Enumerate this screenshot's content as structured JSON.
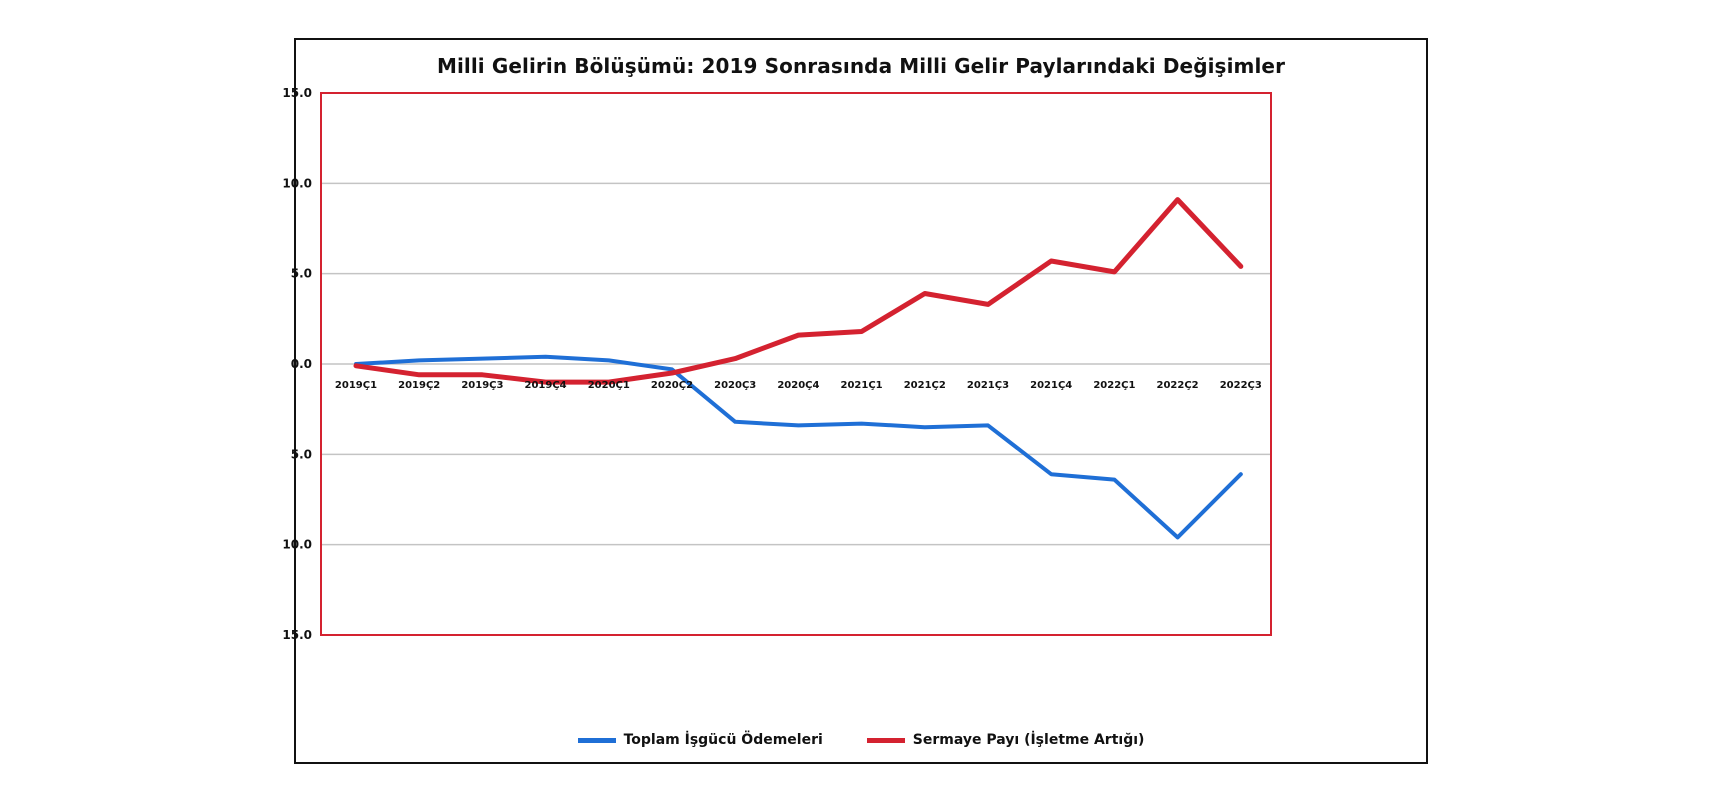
{
  "chart_data": {
    "type": "line",
    "title": "Milli Gelirin Bölüşümü: 2019 Sonrasında Milli Gelir Paylarındaki Değişimler",
    "xlabel": "",
    "ylabel": "",
    "categories": [
      "2019Ç1",
      "2019Ç2",
      "2019Ç3",
      "2019Ç4",
      "2020Ç1",
      "2020Ç2",
      "2020Ç3",
      "2020Ç4",
      "2021Ç1",
      "2021Ç2",
      "2021Ç3",
      "2021Ç4",
      "2022Ç1",
      "2022Ç2",
      "2022Ç3"
    ],
    "y_tick_labels": [
      "15.0",
      "10.0",
      "5.0",
      "0.0",
      "5.0",
      "10.0",
      "15.0"
    ],
    "y_tick_values": [
      15,
      10,
      5,
      0,
      -5,
      -10,
      -15
    ],
    "ylim": [
      -15,
      15
    ],
    "grid": true,
    "legend_position": "bottom",
    "series": [
      {
        "name": "Toplam İşgücü Ödemeleri",
        "color": "#1f6fd6",
        "values": [
          0.0,
          0.2,
          0.3,
          0.4,
          0.2,
          -0.3,
          -3.2,
          -3.4,
          -3.3,
          -3.5,
          -3.4,
          -6.1,
          -6.4,
          -9.6,
          -6.1
        ]
      },
      {
        "name": "Sermaye Payı (İşletme Artığı)",
        "color": "#d42230",
        "values": [
          -0.1,
          -0.6,
          -0.6,
          -1.0,
          -1.0,
          -0.5,
          0.3,
          1.6,
          1.8,
          3.9,
          3.3,
          5.7,
          5.1,
          9.1,
          5.4
        ]
      }
    ],
    "plot_border_color": "#d42230",
    "grid_color": "#c4c4c4"
  }
}
